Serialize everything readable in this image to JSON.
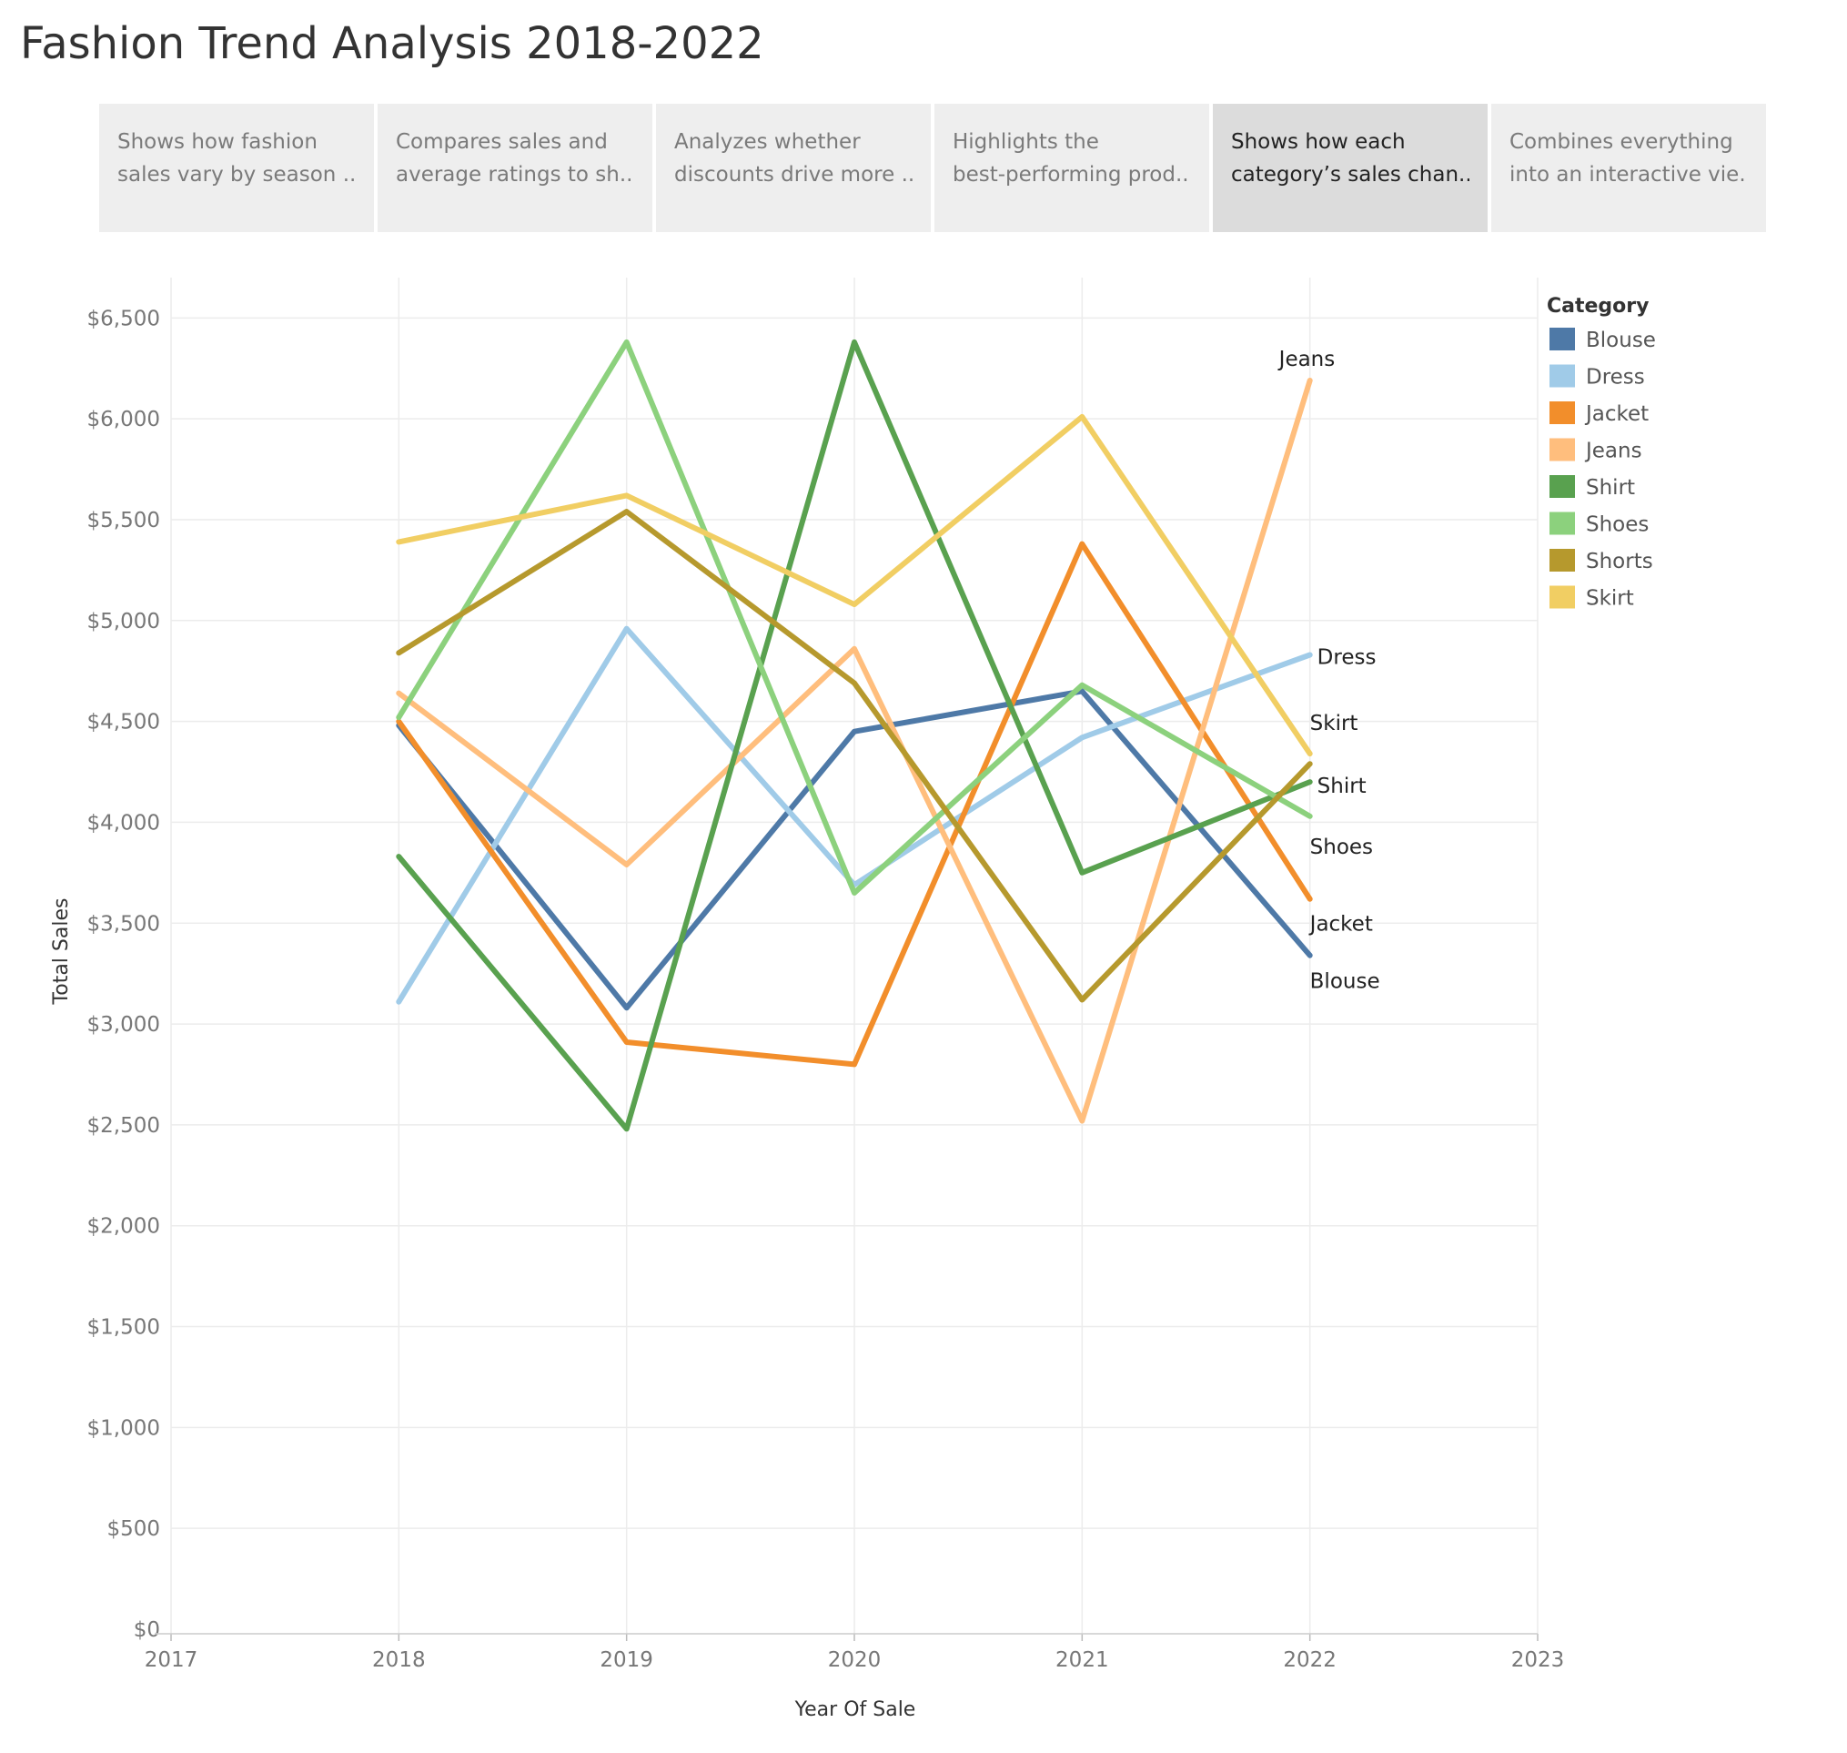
{
  "title": "Fashion Trend Analysis 2018-2022",
  "tabs": [
    {
      "line1": "Shows how fashion",
      "line2": "sales vary by season ..",
      "active": false
    },
    {
      "line1": "Compares sales and",
      "line2": "average ratings to sh..",
      "active": false
    },
    {
      "line1": "Analyzes whether",
      "line2": "discounts drive more ..",
      "active": false
    },
    {
      "line1": "Highlights the",
      "line2": "best-performing prod..",
      "active": false
    },
    {
      "line1": "Shows how each",
      "line2": "category’s sales chan..",
      "active": true
    },
    {
      "line1": "Combines everything",
      "line2": "into an interactive vie..",
      "active": false
    }
  ],
  "chart_data": {
    "type": "line",
    "xlabel": "Year Of Sale",
    "ylabel": "Total Sales",
    "x": [
      2018,
      2019,
      2020,
      2021,
      2022
    ],
    "xlim": [
      2017,
      2023
    ],
    "xticks": [
      "2017",
      "2018",
      "2019",
      "2020",
      "2021",
      "2022",
      "2023"
    ],
    "ylim": [
      0,
      6700
    ],
    "yticks": [
      "$0",
      "$500",
      "$1,000",
      "$1,500",
      "$2,000",
      "$2,500",
      "$3,000",
      "$3,500",
      "$4,000",
      "$4,500",
      "$5,000",
      "$5,500",
      "$6,000",
      "$6,500"
    ],
    "grid": true,
    "legend_title": "Category",
    "legend_position": "right",
    "series": [
      {
        "name": "Blouse",
        "color": "#4e79a7",
        "values": [
          4480,
          3080,
          4450,
          4650,
          3340
        ]
      },
      {
        "name": "Dress",
        "color": "#a0cbe8",
        "values": [
          3110,
          4960,
          3690,
          4420,
          4830
        ]
      },
      {
        "name": "Jacket",
        "color": "#f28e2b",
        "values": [
          4500,
          2910,
          2800,
          5380,
          3620
        ]
      },
      {
        "name": "Jeans",
        "color": "#ffbe7d",
        "values": [
          4640,
          3790,
          4860,
          2520,
          6190
        ]
      },
      {
        "name": "Shirt",
        "color": "#59a14f",
        "values": [
          3830,
          2480,
          6380,
          3750,
          4200
        ]
      },
      {
        "name": "Shoes",
        "color": "#8cd17d",
        "values": [
          4520,
          6380,
          3650,
          4680,
          4030
        ]
      },
      {
        "name": "Shorts",
        "color": "#b6992d",
        "values": [
          4840,
          5540,
          4690,
          3120,
          4290
        ]
      },
      {
        "name": "Skirt",
        "color": "#f1ce63",
        "values": [
          5390,
          5620,
          5080,
          6010,
          4340
        ]
      }
    ]
  }
}
